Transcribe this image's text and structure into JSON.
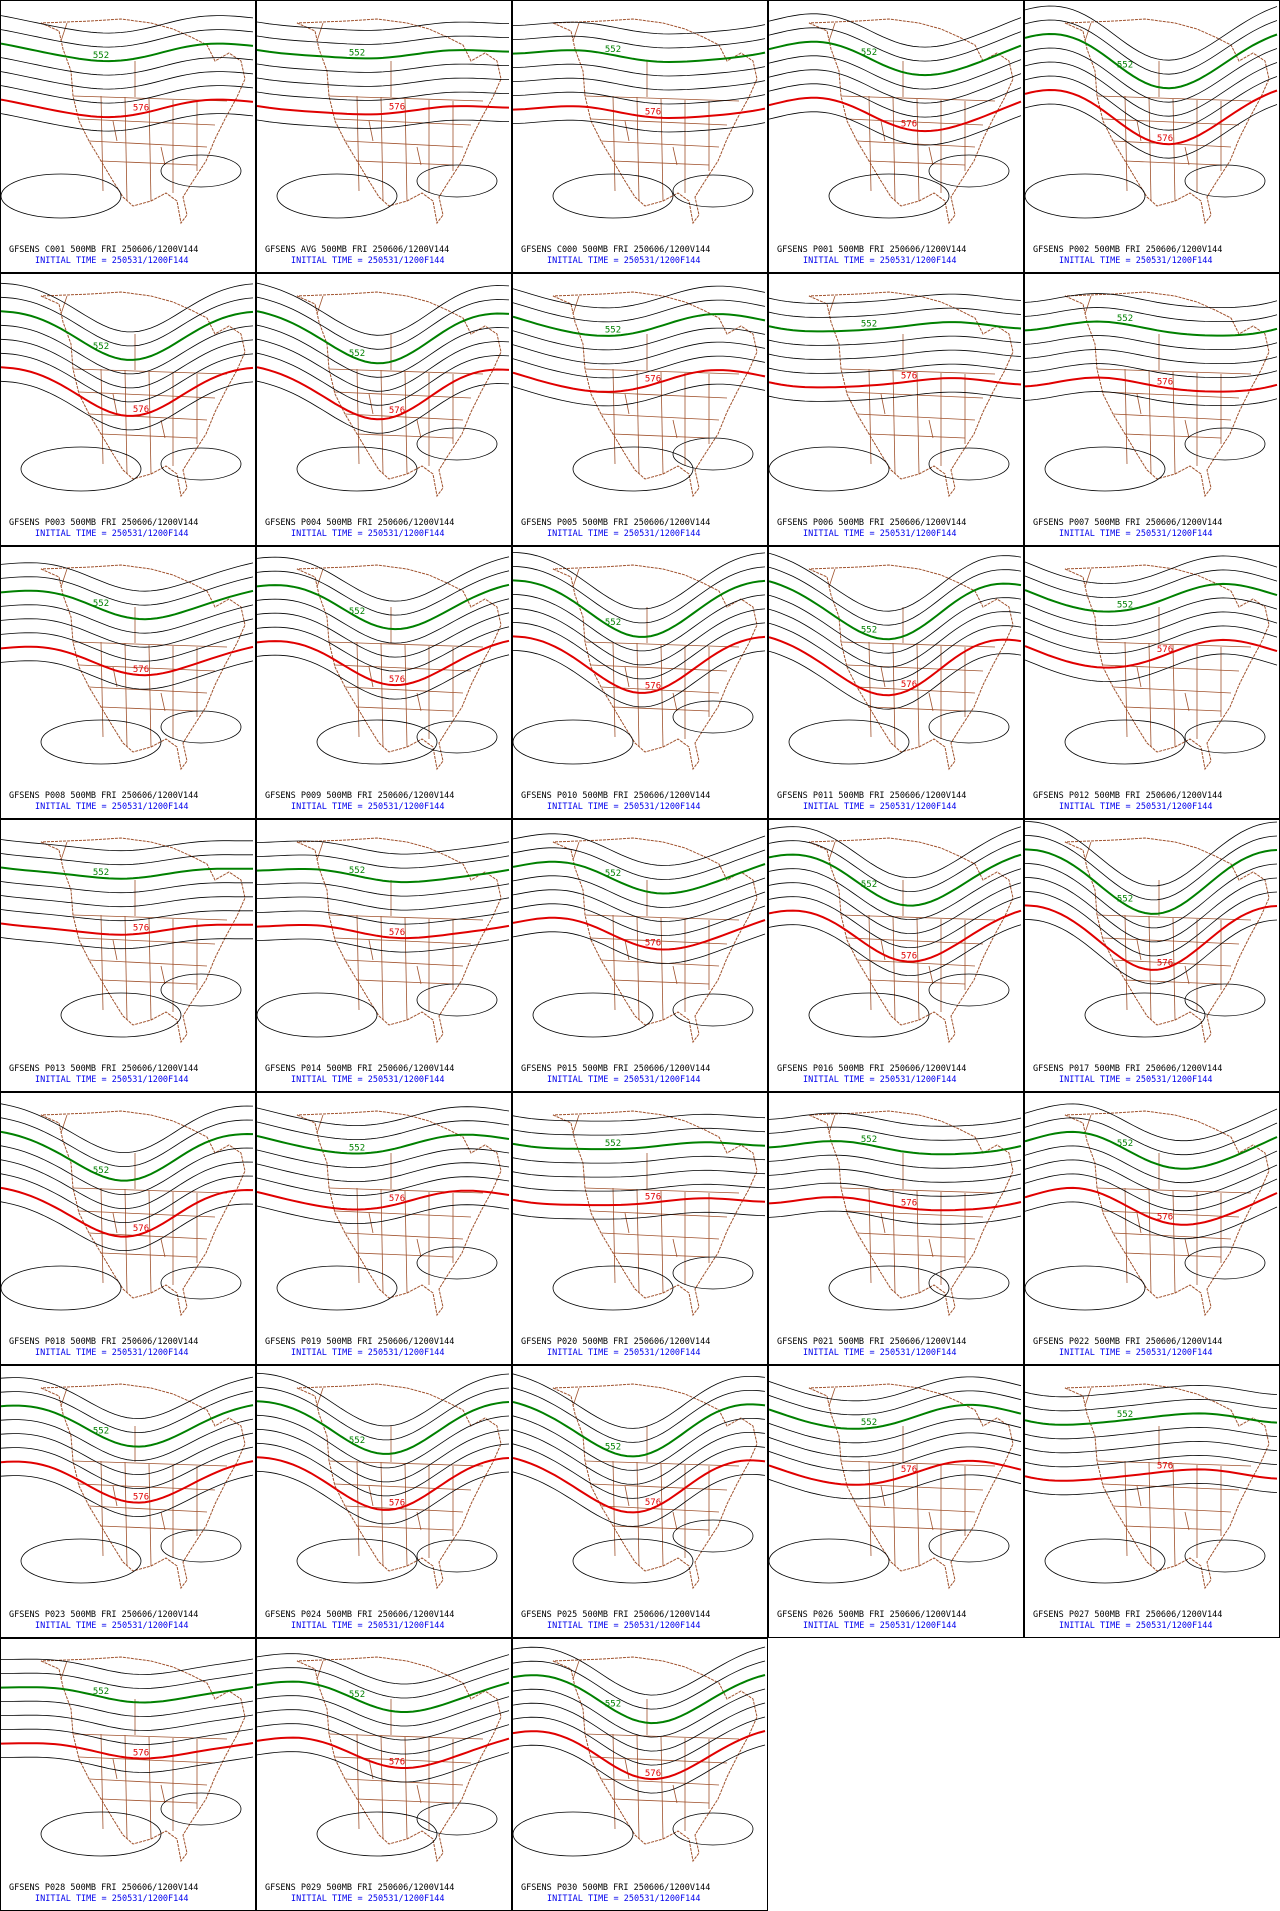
{
  "panels": [
    {
      "title": "GFSENS C001 500MB FRI 250606/1200V144",
      "init": "INITIAL TIME = 250531/1200F144",
      "labels": [
        "552",
        "576"
      ]
    },
    {
      "title": "GFSENS AVG 500MB FRI 250606/1200V144",
      "init": "INITIAL TIME = 250531/1200F144",
      "labels": [
        "552",
        "576"
      ]
    },
    {
      "title": "GFSENS C000 500MB FRI 250606/1200V144",
      "init": "INITIAL TIME = 250531/1200F144",
      "labels": [
        "552",
        "576"
      ]
    },
    {
      "title": "GFSENS P001 500MB FRI 250606/1200V144",
      "init": "INITIAL TIME = 250531/1200F144",
      "labels": [
        "552",
        "576"
      ]
    },
    {
      "title": "GFSENS P002 500MB FRI 250606/1200V144",
      "init": "INITIAL TIME = 250531/1200F144",
      "labels": [
        "552",
        "576"
      ]
    },
    {
      "title": "GFSENS P003 500MB FRI 250606/1200V144",
      "init": "INITIAL TIME = 250531/1200F144",
      "labels": [
        "552",
        "576"
      ]
    },
    {
      "title": "GFSENS P004 500MB FRI 250606/1200V144",
      "init": "INITIAL TIME = 250531/1200F144",
      "labels": [
        "552",
        "576"
      ]
    },
    {
      "title": "GFSENS P005 500MB FRI 250606/1200V144",
      "init": "INITIAL TIME = 250531/1200F144",
      "labels": [
        "552",
        "576"
      ]
    },
    {
      "title": "GFSENS P006 500MB FRI 250606/1200V144",
      "init": "INITIAL TIME = 250531/1200F144",
      "labels": [
        "552",
        "576"
      ]
    },
    {
      "title": "GFSENS P007 500MB FRI 250606/1200V144",
      "init": "INITIAL TIME = 250531/1200F144",
      "labels": [
        "552",
        "576"
      ]
    },
    {
      "title": "GFSENS P008 500MB FRI 250606/1200V144",
      "init": "INITIAL TIME = 250531/1200F144",
      "labels": [
        "552",
        "576"
      ]
    },
    {
      "title": "GFSENS P009 500MB FRI 250606/1200V144",
      "init": "INITIAL TIME = 250531/1200F144",
      "labels": [
        "552",
        "576"
      ]
    },
    {
      "title": "GFSENS P010 500MB FRI 250606/1200V144",
      "init": "INITIAL TIME = 250531/1200F144",
      "labels": [
        "552",
        "576"
      ]
    },
    {
      "title": "GFSENS P011 500MB FRI 250606/1200V144",
      "init": "INITIAL TIME = 250531/1200F144",
      "labels": [
        "552",
        "576"
      ]
    },
    {
      "title": "GFSENS P012 500MB FRI 250606/1200V144",
      "init": "INITIAL TIME = 250531/1200F144",
      "labels": [
        "552",
        "576"
      ]
    },
    {
      "title": "GFSENS P013 500MB FRI 250606/1200V144",
      "init": "INITIAL TIME = 250531/1200F144",
      "labels": [
        "552",
        "576"
      ]
    },
    {
      "title": "GFSENS P014 500MB FRI 250606/1200V144",
      "init": "INITIAL TIME = 250531/1200F144",
      "labels": [
        "552",
        "576"
      ]
    },
    {
      "title": "GFSENS P015 500MB FRI 250606/1200V144",
      "init": "INITIAL TIME = 250531/1200F144",
      "labels": [
        "552",
        "576"
      ]
    },
    {
      "title": "GFSENS P016 500MB FRI 250606/1200V144",
      "init": "INITIAL TIME = 250531/1200F144",
      "labels": [
        "552",
        "576"
      ]
    },
    {
      "title": "GFSENS P017 500MB FRI 250606/1200V144",
      "init": "INITIAL TIME = 250531/1200F144",
      "labels": [
        "552",
        "576"
      ]
    },
    {
      "title": "GFSENS P018 500MB FRI 250606/1200V144",
      "init": "INITIAL TIME = 250531/1200F144",
      "labels": [
        "552",
        "576"
      ]
    },
    {
      "title": "GFSENS P019 500MB FRI 250606/1200V144",
      "init": "INITIAL TIME = 250531/1200F144",
      "labels": [
        "552",
        "576"
      ]
    },
    {
      "title": "GFSENS P020 500MB FRI 250606/1200V144",
      "init": "INITIAL TIME = 250531/1200F144",
      "labels": [
        "552",
        "576"
      ]
    },
    {
      "title": "GFSENS P021 500MB FRI 250606/1200V144",
      "init": "INITIAL TIME = 250531/1200F144",
      "labels": [
        "552",
        "576"
      ]
    },
    {
      "title": "GFSENS P022 500MB FRI 250606/1200V144",
      "init": "INITIAL TIME = 250531/1200F144",
      "labels": [
        "552",
        "576"
      ]
    },
    {
      "title": "GFSENS P023 500MB FRI 250606/1200V144",
      "init": "INITIAL TIME = 250531/1200F144",
      "labels": [
        "552",
        "576"
      ]
    },
    {
      "title": "GFSENS P024 500MB FRI 250606/1200V144",
      "init": "INITIAL TIME = 250531/1200F144",
      "labels": [
        "552",
        "576"
      ]
    },
    {
      "title": "GFSENS P025 500MB FRI 250606/1200V144",
      "init": "INITIAL TIME = 250531/1200F144",
      "labels": [
        "552",
        "576"
      ]
    },
    {
      "title": "GFSENS P026 500MB FRI 250606/1200V144",
      "init": "INITIAL TIME = 250531/1200F144",
      "labels": [
        "552",
        "576"
      ]
    },
    {
      "title": "GFSENS P027 500MB FRI 250606/1200V144",
      "init": "INITIAL TIME = 250531/1200F144",
      "labels": [
        "552",
        "576"
      ]
    },
    {
      "title": "GFSENS P028 500MB FRI 250606/1200V144",
      "init": "INITIAL TIME = 250531/1200F144",
      "labels": [
        "552",
        "576"
      ]
    },
    {
      "title": "GFSENS P029 500MB FRI 250606/1200V144",
      "init": "INITIAL TIME = 250531/1200F144",
      "labels": [
        "552",
        "576"
      ]
    },
    {
      "title": "GFSENS P030 500MB FRI 250606/1200V144",
      "init": "INITIAL TIME = 250531/1200F144",
      "labels": [
        "552",
        "576"
      ]
    }
  ]
}
